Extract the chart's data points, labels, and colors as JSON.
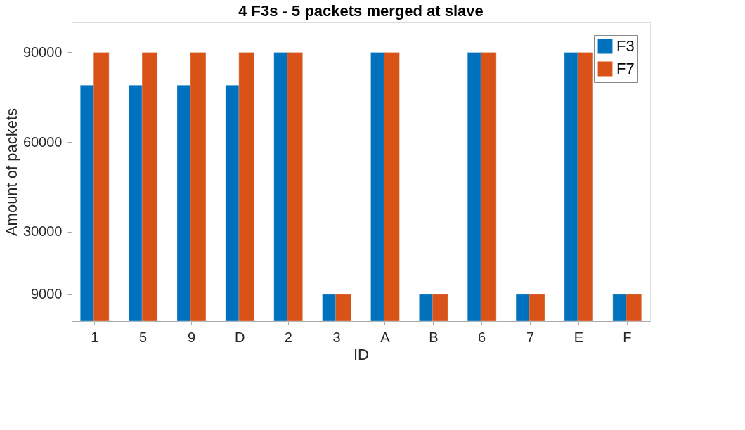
{
  "chart_data": {
    "type": "bar",
    "title": "4 F3s - 5 packets merged at slave",
    "xlabel": "ID",
    "ylabel": "Amount of packets",
    "categories": [
      "1",
      "5",
      "9",
      "D",
      "2",
      "3",
      "A",
      "B",
      "6",
      "7",
      "E",
      "F"
    ],
    "series": [
      {
        "name": "F3",
        "color": "#0072bd",
        "values": [
          79000,
          79000,
          79000,
          79000,
          90000,
          9000,
          90000,
          9000,
          90000,
          9000,
          90000,
          9000
        ]
      },
      {
        "name": "F7",
        "color": "#d95319",
        "values": [
          90000,
          90000,
          90000,
          90000,
          90000,
          9000,
          90000,
          9000,
          90000,
          9000,
          90000,
          9000
        ]
      }
    ],
    "ylim": [
      0,
      100000
    ],
    "yticks": [
      9000,
      30000,
      60000,
      90000
    ],
    "grid": false,
    "legend": "top right"
  }
}
